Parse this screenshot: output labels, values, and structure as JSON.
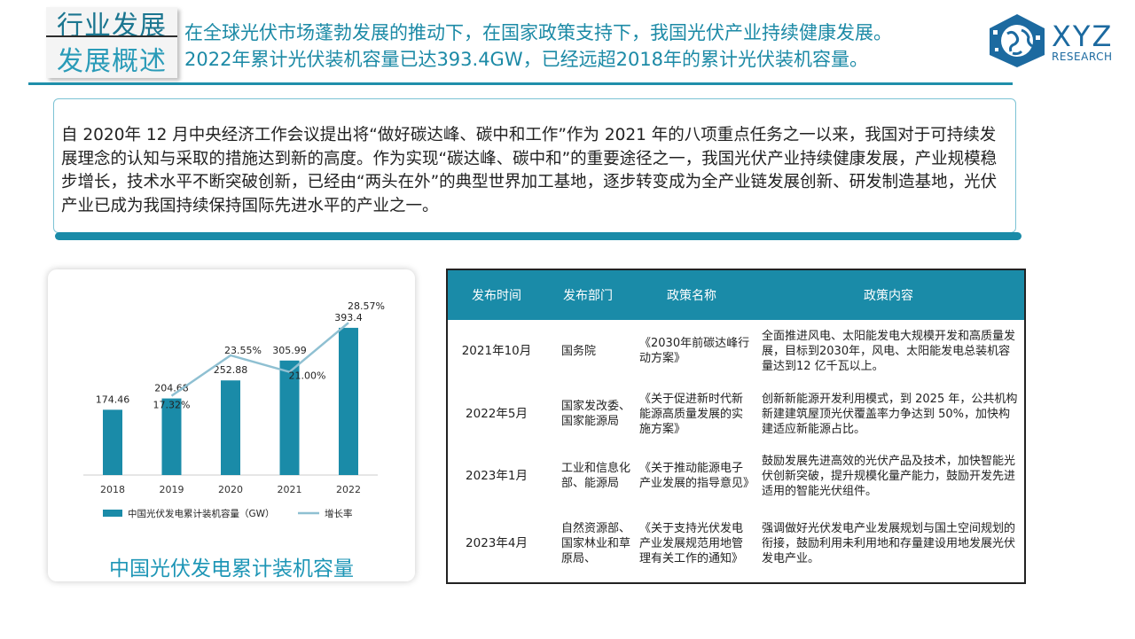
{
  "title": {
    "line1": "行业发展",
    "line2": "发展概述"
  },
  "headline": {
    "line1": "在全球光伏市场蓬勃发展的推动下，在国家政策支持下，我国光伏产业持续健康发展。",
    "line2": "2022年累计光伏装机容量已达393.4GW，已经远超2018年的累计光伏装机容量。"
  },
  "logo": {
    "name": "XYZ",
    "sub": "RESEARCH",
    "color": "#1c6aa0"
  },
  "intro": {
    "text": "自 2020年 12 月中央经济工作会议提出将“做好碳达峰、碳中和工作”作为 2021 年的八项重点任务之一以来，我国对于可持续发展理念的认知与采取的措施达到新的高度。作为实现“碳达峰、碳中和”的重要途径之一，我国光伏产业持续健康发展，产业规模稳步增长，技术水平不断突破创新，已经由“两头在外”的典型世界加工基地，逐步转变成为全产业链发展创新、研发制造基地，光伏产业已成为我国持续保持国际先进水平的产业之一。"
  },
  "chart_data": {
    "type": "bar",
    "title": "中国光伏发电累计装机容量",
    "categories": [
      "2018",
      "2019",
      "2020",
      "2021",
      "2022"
    ],
    "series": [
      {
        "name": "中国光伏发电累计装机容量（GW）",
        "type": "bar",
        "color": "#1a8ba8",
        "values": [
          174.46,
          204.68,
          252.88,
          305.99,
          393.4
        ],
        "labels": [
          "174.46",
          "204.68",
          "252.88",
          "305.99",
          "393.4"
        ]
      },
      {
        "name": "增长率",
        "type": "line",
        "color": "#8fc0d2",
        "values": [
          17.32,
          23.55,
          21.0,
          28.57
        ],
        "x": [
          "2019",
          "2020",
          "2021",
          "2022"
        ],
        "labels": [
          "17.32%",
          "23.55%",
          "21.00%",
          "28.57%"
        ]
      }
    ],
    "ylim": [
      0,
      450
    ],
    "legend": "bottom",
    "grid": false
  },
  "table": {
    "headers": [
      "发布时间",
      "发布部门",
      "政策名称",
      "政策内容"
    ],
    "rows": [
      {
        "date": "2021年10月",
        "dept": "国务院",
        "name": "《2030年前碳达峰行动方案》",
        "content": "全面推进风电、太阳能发电大规模开发和高质量发展，目标到2030年，风电、太阳能发电总装机容量达到12 亿千瓦以上。"
      },
      {
        "date": "2022年5月",
        "dept": "国家发改委、国家能源局",
        "name": "《关于促进新时代新能源高质量发展的实施方案》",
        "content": "创新新能源开发利用模式，到 2025 年，公共机构新建建筑屋顶光伏覆盖率力争达到 50%，加快构建适应新能源占比。"
      },
      {
        "date": "2023年1月",
        "dept": "工业和信息化部、能源局",
        "name": "《关于推动能源电子产业发展的指导意见》",
        "content": "鼓励发展先进高效的光伏产品及技术，加快智能光伏创新突破，提升规模化量产能力，鼓励开发先进适用的智能光伏组件。"
      },
      {
        "date": "2023年4月",
        "dept": "自然资源部、国家林业和草原局、",
        "name": "《关于支持光伏发电产业发展规范用地管理有关工作的通知》",
        "content": "强调做好光伏发电产业发展规划与国土空间规划的衔接，鼓励利用未利用地和存量建设用地发展光伏发电产业。"
      }
    ]
  }
}
